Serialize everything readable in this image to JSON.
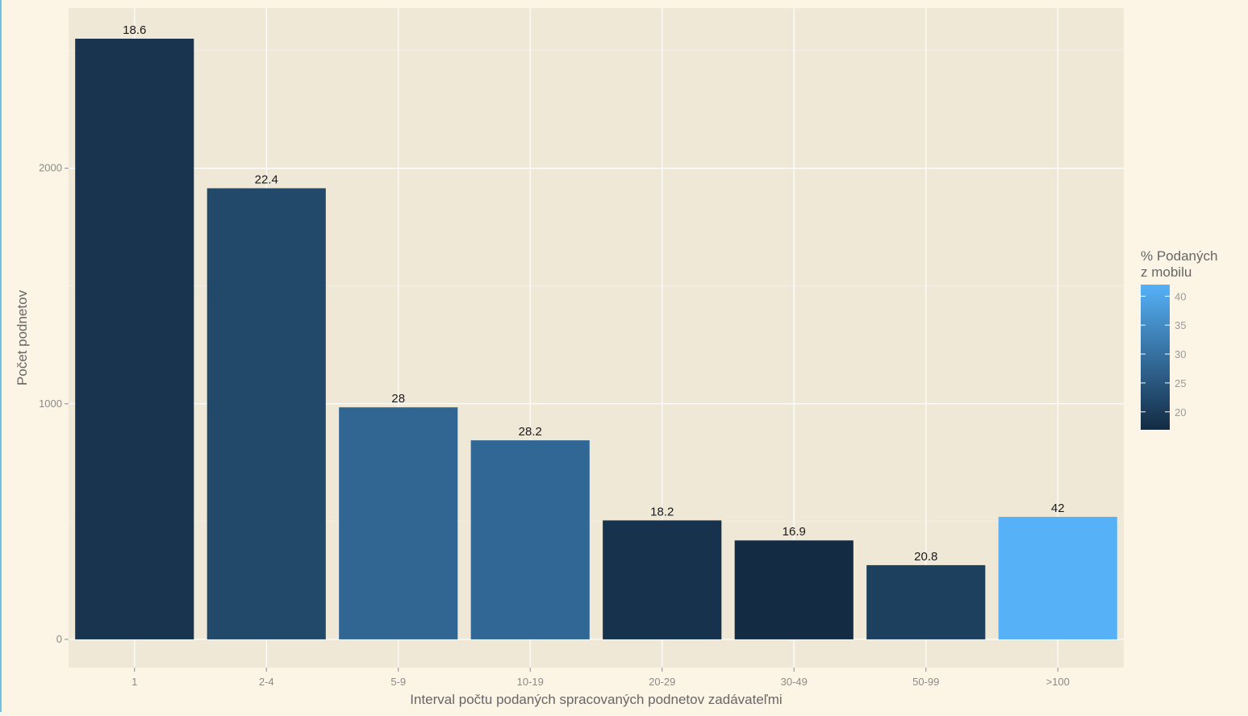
{
  "chart_data": {
    "type": "bar",
    "title": "",
    "xlabel": "Interval počtu podaných spracovaných podnetov zadávateľmi",
    "ylabel": "Počet podnetov",
    "categories": [
      "1",
      "2-4",
      "5-9",
      "10-19",
      "20-29",
      "30-49",
      "50-99",
      ">100"
    ],
    "values": [
      2550,
      1915,
      985,
      845,
      505,
      420,
      315,
      520
    ],
    "bar_labels": [
      "18.6",
      "22.4",
      "28",
      "28.2",
      "18.2",
      "16.9",
      "20.8",
      "42"
    ],
    "fill_values": [
      18.6,
      22.4,
      28,
      28.2,
      18.2,
      16.9,
      20.8,
      42
    ],
    "ylim": [
      -120,
      2680
    ],
    "yticks": [
      0,
      1000,
      2000
    ],
    "ytick_labels": [
      "0",
      "1000",
      "2000"
    ],
    "grid": true,
    "legend": {
      "title_line1": "% Podaných",
      "title_line2": "z mobilu",
      "placement": "right",
      "min": 16.9,
      "max": 42,
      "ticks": [
        20,
        25,
        30,
        35,
        40
      ],
      "tick_labels": [
        "20",
        "25",
        "30",
        "35",
        "40"
      ],
      "color_low": "#132b43",
      "color_high": "#56b1f7"
    },
    "colors": {
      "panel_bg": "#efe8d7",
      "grid": "#ffffff"
    }
  }
}
